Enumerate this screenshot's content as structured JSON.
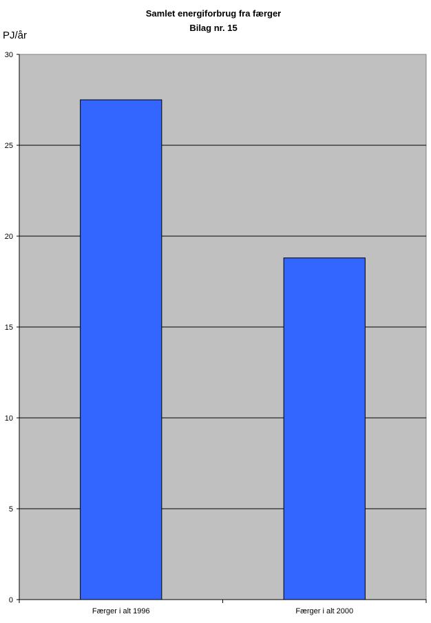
{
  "chart_data": {
    "type": "bar",
    "title": "Samlet energiforbrug fra færger",
    "subtitle": "Bilag nr. 15",
    "ylabel": "PJ/år",
    "xlabel": "",
    "categories": [
      "Færger i alt 1996",
      "Færger i alt 2000"
    ],
    "values": [
      27.5,
      18.8
    ],
    "ylim": [
      0,
      30
    ],
    "yticks": [
      0,
      5,
      10,
      15,
      20,
      25,
      30
    ],
    "grid": true,
    "legend": "none",
    "colors": {
      "bar": "#3366FF",
      "plot_bg": "#C0C0C0",
      "gridline": "#000000"
    }
  }
}
